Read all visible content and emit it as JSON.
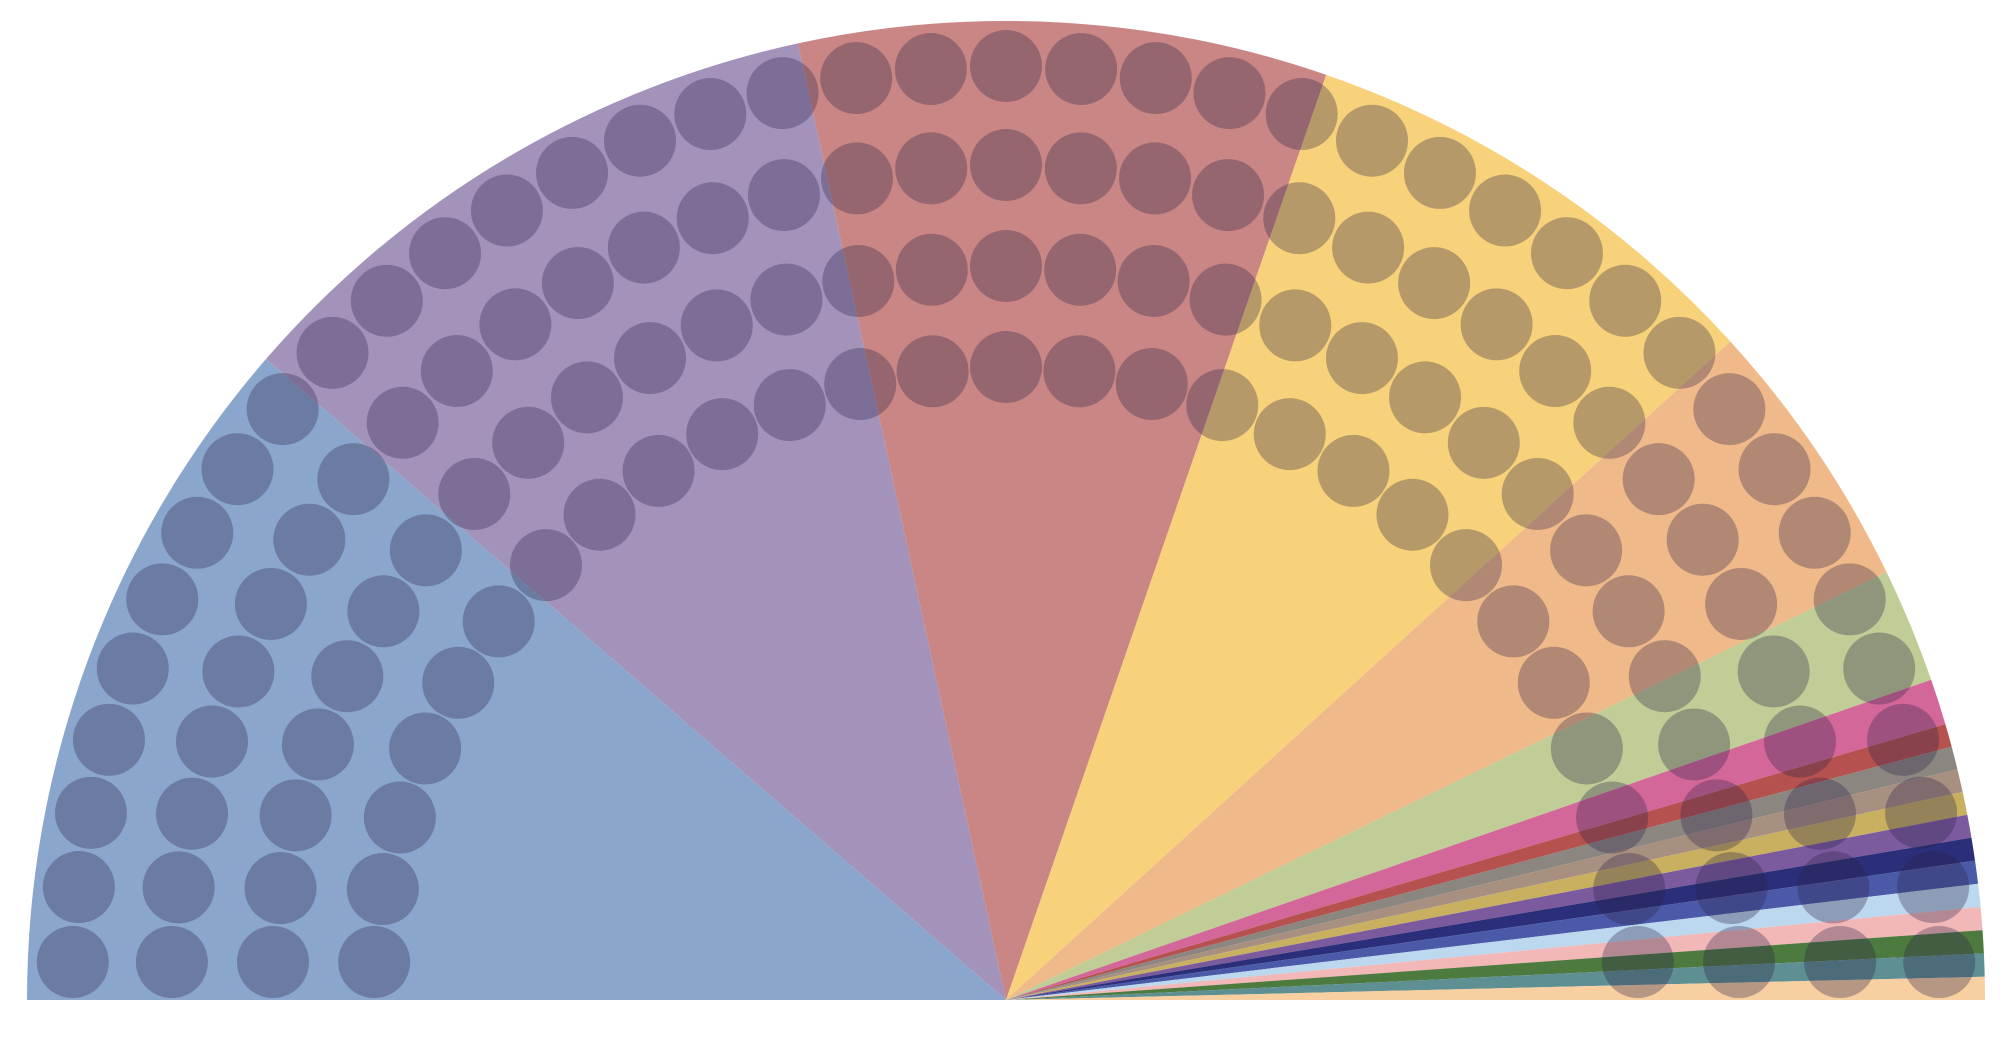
{
  "chart_data": {
    "type": "parliament",
    "values": [
      30,
      27,
      23,
      21,
      12,
      5,
      2,
      1,
      1,
      1,
      1,
      1,
      1,
      1,
      1,
      1,
      1,
      1,
      1
    ],
    "colors": [
      "#8aa6cc",
      "#a393bb",
      "#c98684",
      "#f8d27a",
      "#efb98a",
      "#c0cd96",
      "#d4679a",
      "#b5524f",
      "#8c8680",
      "#a89080",
      "#c9b060",
      "#7b5a9e",
      "#2b2f7a",
      "#4a5aa8",
      "#bcd8ee",
      "#f2b8b8",
      "#4d7a3e",
      "#5e8f92",
      "#f7cfa0"
    ]
  }
}
